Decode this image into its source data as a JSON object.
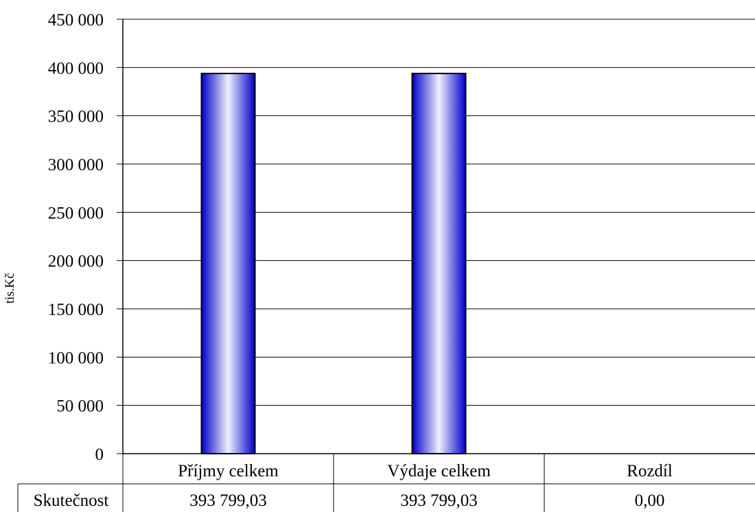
{
  "chart_data": {
    "type": "bar",
    "ylabel": "tis.Kč",
    "ylim": [
      0,
      450000
    ],
    "ytick_labels": [
      "0",
      "50 000",
      "100 000",
      "150 000",
      "200 000",
      "250 000",
      "300 000",
      "350 000",
      "400 000",
      "450 000"
    ],
    "categories": [
      "Příjmy celkem",
      "Výdaje celkem",
      "Rozdíl"
    ],
    "series": [
      {
        "name": "Skutečnost",
        "values": [
          393799.03,
          393799.03,
          0.0
        ],
        "labels": [
          "393 799,03",
          "393 799,03",
          "0,00"
        ]
      }
    ],
    "grid": true,
    "colors": {
      "bar_edge": "#0000c8",
      "bar_center": "#f0f0ff",
      "bar_outline": "#000000",
      "grid": "#000000"
    }
  }
}
